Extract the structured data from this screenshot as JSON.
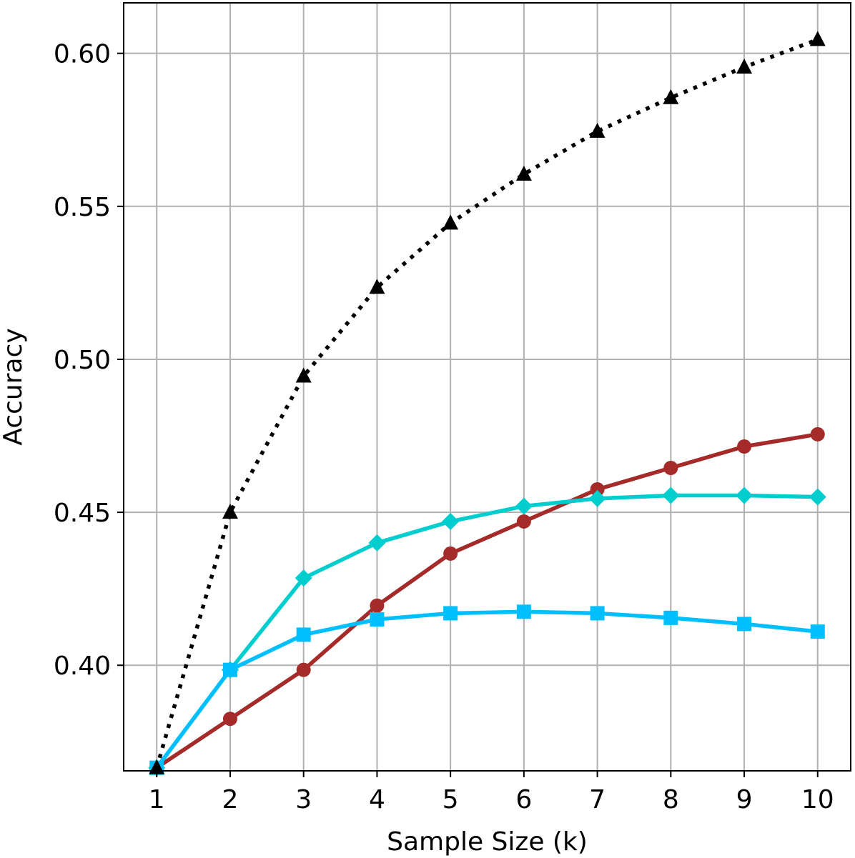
{
  "chart_data": {
    "type": "line",
    "title": "",
    "xlabel": "Sample Size (k)",
    "ylabel": "Accuracy",
    "x": [
      1,
      2,
      3,
      4,
      5,
      6,
      7,
      8,
      9,
      10
    ],
    "x_ticks": [
      "1",
      "2",
      "3",
      "4",
      "5",
      "6",
      "7",
      "8",
      "9",
      "10"
    ],
    "y_ticks": [
      {
        "value": 0.4,
        "label": "0.40"
      },
      {
        "value": 0.45,
        "label": "0.45"
      },
      {
        "value": 0.5,
        "label": "0.50"
      },
      {
        "value": 0.55,
        "label": "0.55"
      },
      {
        "value": 0.6,
        "label": "0.60"
      }
    ],
    "xlim": [
      0.55,
      10.45
    ],
    "ylim": [
      0.3655,
      0.6165
    ],
    "grid": true,
    "legend": "none",
    "series": [
      {
        "color": "#000000",
        "line_style": "dotted",
        "marker": "triangle",
        "values": [
          0.3665,
          0.45,
          0.4945,
          0.5235,
          0.5445,
          0.5605,
          0.5745,
          0.5855,
          0.5955,
          0.6045
        ]
      },
      {
        "color": "#a52a2a",
        "line_style": "solid",
        "marker": "circle",
        "values": [
          0.3665,
          0.3825,
          0.3985,
          0.4195,
          0.4365,
          0.447,
          0.4575,
          0.4645,
          0.4715,
          0.4755
        ]
      },
      {
        "color": "#00cdcd",
        "line_style": "solid",
        "marker": "diamond",
        "values": [
          0.3665,
          0.3985,
          0.4285,
          0.44,
          0.447,
          0.452,
          0.4545,
          0.4555,
          0.4555,
          0.455
        ]
      },
      {
        "color": "#00bfff",
        "line_style": "solid",
        "marker": "square",
        "values": [
          0.3665,
          0.3985,
          0.41,
          0.415,
          0.417,
          0.4175,
          0.417,
          0.4155,
          0.4135,
          0.411
        ]
      }
    ]
  }
}
